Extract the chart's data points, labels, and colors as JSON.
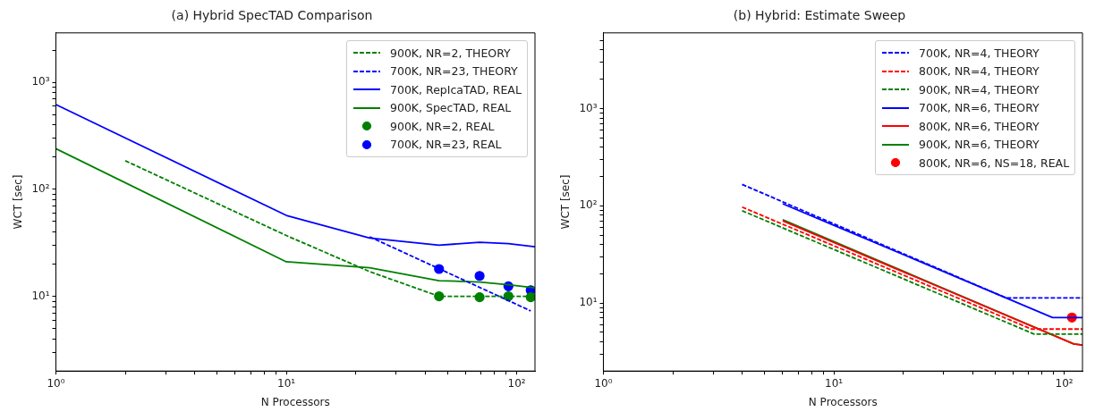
{
  "chart_data": [
    {
      "type": "line",
      "title": "(a) Hybrid SpecTAD Comparison",
      "xlabel": "N Processors",
      "ylabel": "WCT [sec]",
      "log": "xy",
      "grid": false,
      "legend": "top right",
      "xlim": [
        1,
        120
      ],
      "ylim": [
        2,
        2900
      ],
      "xticks": [
        {
          "value": 1,
          "label": "10⁰"
        },
        {
          "value": 2,
          "label": null
        },
        {
          "value": 3,
          "label": null
        },
        {
          "value": 4,
          "label": null
        },
        {
          "value": 5,
          "label": null
        },
        {
          "value": 6,
          "label": null
        },
        {
          "value": 7,
          "label": null
        },
        {
          "value": 8,
          "label": null
        },
        {
          "value": 9,
          "label": null
        },
        {
          "value": 10,
          "label": "10¹"
        },
        {
          "value": 20,
          "label": null
        },
        {
          "value": 30,
          "label": null
        },
        {
          "value": 40,
          "label": null
        },
        {
          "value": 50,
          "label": null
        },
        {
          "value": 60,
          "label": null
        },
        {
          "value": 70,
          "label": null
        },
        {
          "value": 80,
          "label": null
        },
        {
          "value": 90,
          "label": null
        },
        {
          "value": 100,
          "label": "10²"
        }
      ],
      "yticks": [
        {
          "value": 3,
          "label": null
        },
        {
          "value": 4,
          "label": null
        },
        {
          "value": 5,
          "label": null
        },
        {
          "value": 6,
          "label": null
        },
        {
          "value": 7,
          "label": null
        },
        {
          "value": 8,
          "label": null
        },
        {
          "value": 9,
          "label": null
        },
        {
          "value": 10,
          "label": "10¹"
        },
        {
          "value": 20,
          "label": null
        },
        {
          "value": 30,
          "label": null
        },
        {
          "value": 40,
          "label": null
        },
        {
          "value": 50,
          "label": null
        },
        {
          "value": 60,
          "label": null
        },
        {
          "value": 70,
          "label": null
        },
        {
          "value": 80,
          "label": null
        },
        {
          "value": 90,
          "label": null
        },
        {
          "value": 100,
          "label": "10²"
        },
        {
          "value": 200,
          "label": null
        },
        {
          "value": 300,
          "label": null
        },
        {
          "value": 400,
          "label": null
        },
        {
          "value": 500,
          "label": null
        },
        {
          "value": 600,
          "label": null
        },
        {
          "value": 700,
          "label": null
        },
        {
          "value": 800,
          "label": null
        },
        {
          "value": 900,
          "label": null
        },
        {
          "value": 1000,
          "label": "10³"
        },
        {
          "value": 2000,
          "label": null
        }
      ],
      "series": [
        {
          "name": "900K, NR=2, THEORY",
          "type": "line",
          "line_style": "dashed",
          "marker": "none",
          "color": "#008000",
          "x": [
            2,
            10,
            23,
            46,
            69,
            92,
            115
          ],
          "values": [
            185,
            37,
            17,
            10,
            10,
            10,
            10
          ]
        },
        {
          "name": "700K, NR=23, THEORY",
          "type": "line",
          "line_style": "dashed",
          "marker": "none",
          "color": "#0000ff",
          "x": [
            23,
            115
          ],
          "values": [
            36,
            7.3
          ]
        },
        {
          "name": "700K, RepIcaTAD, REAL",
          "type": "line",
          "line_style": "solid",
          "marker": "none",
          "color": "#0000ff",
          "x": [
            1,
            10,
            23,
            46,
            69,
            92,
            120
          ],
          "values": [
            620,
            57,
            35,
            30,
            32,
            31,
            29
          ]
        },
        {
          "name": "900K, SpecTAD, REAL",
          "type": "line",
          "line_style": "solid",
          "marker": "none",
          "color": "#008000",
          "x": [
            1,
            10,
            23,
            46,
            69,
            92,
            120
          ],
          "values": [
            240,
            21,
            18.5,
            14,
            13.6,
            12.8,
            12
          ]
        },
        {
          "name": "900K, NR=2, REAL",
          "type": "scatter",
          "marker": "circle",
          "color": "#008000",
          "x": [
            46,
            69,
            92,
            115
          ],
          "values": [
            10,
            9.8,
            10,
            9.8
          ]
        },
        {
          "name": "700K, NR=23, REAL",
          "type": "scatter",
          "marker": "circle",
          "color": "#0000ff",
          "x": [
            46,
            69,
            92,
            115
          ],
          "values": [
            18,
            15.5,
            12.4,
            11.4
          ]
        }
      ]
    },
    {
      "type": "line",
      "title": "(b) Hybrid: Estimate Sweep",
      "xlabel": "N Processors",
      "ylabel": "WCT [sec]",
      "log": "xy",
      "grid": false,
      "legend": "top right",
      "xlim": [
        1,
        120
      ],
      "ylim": [
        2,
        6000
      ],
      "xticks": [
        {
          "value": 1,
          "label": "10⁰"
        },
        {
          "value": 2,
          "label": null
        },
        {
          "value": 3,
          "label": null
        },
        {
          "value": 4,
          "label": null
        },
        {
          "value": 5,
          "label": null
        },
        {
          "value": 6,
          "label": null
        },
        {
          "value": 7,
          "label": null
        },
        {
          "value": 8,
          "label": null
        },
        {
          "value": 9,
          "label": null
        },
        {
          "value": 10,
          "label": "10¹"
        },
        {
          "value": 20,
          "label": null
        },
        {
          "value": 30,
          "label": null
        },
        {
          "value": 40,
          "label": null
        },
        {
          "value": 50,
          "label": null
        },
        {
          "value": 60,
          "label": null
        },
        {
          "value": 70,
          "label": null
        },
        {
          "value": 80,
          "label": null
        },
        {
          "value": 90,
          "label": null
        },
        {
          "value": 100,
          "label": "10²"
        }
      ],
      "yticks": [
        {
          "value": 3,
          "label": null
        },
        {
          "value": 4,
          "label": null
        },
        {
          "value": 5,
          "label": null
        },
        {
          "value": 6,
          "label": null
        },
        {
          "value": 7,
          "label": null
        },
        {
          "value": 8,
          "label": null
        },
        {
          "value": 9,
          "label": null
        },
        {
          "value": 10,
          "label": "10¹"
        },
        {
          "value": 20,
          "label": null
        },
        {
          "value": 30,
          "label": null
        },
        {
          "value": 40,
          "label": null
        },
        {
          "value": 50,
          "label": null
        },
        {
          "value": 60,
          "label": null
        },
        {
          "value": 70,
          "label": null
        },
        {
          "value": 80,
          "label": null
        },
        {
          "value": 90,
          "label": null
        },
        {
          "value": 100,
          "label": "10²"
        },
        {
          "value": 200,
          "label": null
        },
        {
          "value": 300,
          "label": null
        },
        {
          "value": 400,
          "label": null
        },
        {
          "value": 500,
          "label": null
        },
        {
          "value": 600,
          "label": null
        },
        {
          "value": 700,
          "label": null
        },
        {
          "value": 800,
          "label": null
        },
        {
          "value": 900,
          "label": null
        },
        {
          "value": 1000,
          "label": "10³"
        },
        {
          "value": 2000,
          "label": null
        },
        {
          "value": 3000,
          "label": null
        },
        {
          "value": 4000,
          "label": null
        },
        {
          "value": 5000,
          "label": null
        }
      ],
      "series": [
        {
          "name": "700K, NR=4, THEORY",
          "type": "line",
          "line_style": "dashed",
          "marker": "none",
          "color": "#0000ff",
          "x": [
            4,
            56,
            120
          ],
          "values": [
            166,
            11.3,
            11.3
          ]
        },
        {
          "name": "800K, NR=4, THEORY",
          "type": "line",
          "line_style": "dashed",
          "marker": "none",
          "color": "#ff0000",
          "x": [
            4,
            72,
            120
          ],
          "values": [
            97,
            5.4,
            5.4
          ]
        },
        {
          "name": "900K, NR=4, THEORY",
          "type": "line",
          "line_style": "dashed",
          "marker": "none",
          "color": "#008000",
          "x": [
            4,
            74,
            120
          ],
          "values": [
            89,
            4.8,
            4.8
          ]
        },
        {
          "name": "700K, NR=6, THEORY",
          "type": "line",
          "line_style": "solid",
          "marker": "none",
          "color": "#0000ff",
          "x": [
            6,
            89,
            120
          ],
          "values": [
            105,
            7.1,
            7.1
          ]
        },
        {
          "name": "800K, NR=6, THEORY",
          "type": "line",
          "line_style": "solid",
          "marker": "none",
          "color": "#ff0000",
          "x": [
            6,
            110,
            120
          ],
          "values": [
            70,
            3.8,
            3.7
          ]
        },
        {
          "name": "900K, NR=6, THEORY",
          "type": "line",
          "line_style": "solid",
          "marker": "none",
          "color": "#008000",
          "x": [
            6,
            110,
            120
          ],
          "values": [
            72,
            3.8,
            3.7
          ]
        },
        {
          "name": "800K, NR=6, NS=18, REAL",
          "type": "scatter",
          "marker": "circle",
          "color": "#ff0000",
          "x": [
            108
          ],
          "values": [
            7.1
          ]
        }
      ]
    }
  ]
}
